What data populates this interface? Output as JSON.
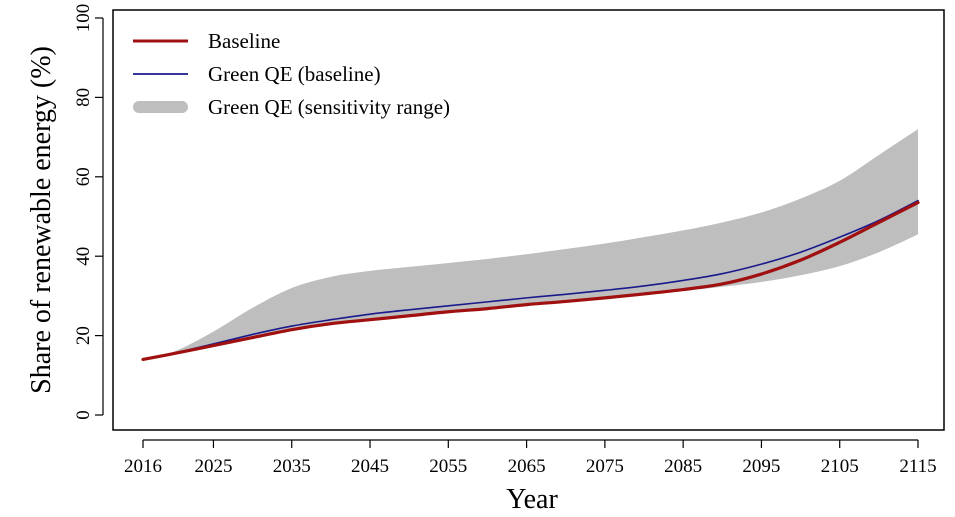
{
  "chart_data": {
    "type": "line",
    "title": "",
    "xlabel": "Year",
    "ylabel": "Share of renewable energy (%)",
    "xlim": [
      2016,
      2115
    ],
    "ylim": [
      0,
      100
    ],
    "x_ticks": [
      2016,
      2025,
      2035,
      2045,
      2055,
      2065,
      2075,
      2085,
      2095,
      2105,
      2115
    ],
    "y_ticks": [
      0,
      20,
      40,
      60,
      80,
      100
    ],
    "legend_position": "top-left",
    "grid": false,
    "legend": [
      {
        "label": "Baseline",
        "color": "#A01010",
        "kind": "line"
      },
      {
        "label": "Green QE (baseline)",
        "color": "#1A1A8C",
        "kind": "line"
      },
      {
        "label": "Green QE (sensitivity range)",
        "color": "#BEBEBE",
        "kind": "band"
      }
    ],
    "x": [
      2016,
      2020,
      2025,
      2030,
      2035,
      2040,
      2045,
      2050,
      2055,
      2060,
      2065,
      2070,
      2075,
      2080,
      2085,
      2090,
      2095,
      2100,
      2105,
      2110,
      2115
    ],
    "series": [
      {
        "name": "Baseline",
        "color": "#A01010",
        "values": [
          14.0,
          15.5,
          17.5,
          19.5,
          21.5,
          23.0,
          24.0,
          25.0,
          26.0,
          26.8,
          27.8,
          28.6,
          29.5,
          30.5,
          31.6,
          33.0,
          35.5,
          39.0,
          43.5,
          48.5,
          53.5
        ]
      },
      {
        "name": "Green QE (baseline)",
        "color": "#1A1A8C",
        "values": [
          14.0,
          15.6,
          17.9,
          20.3,
          22.4,
          24.0,
          25.4,
          26.5,
          27.5,
          28.5,
          29.5,
          30.4,
          31.4,
          32.5,
          33.9,
          35.6,
          38.0,
          41.0,
          44.8,
          49.0,
          54.0
        ]
      },
      {
        "name": "Green QE (sensitivity range)",
        "kind": "band",
        "color": "#BEBEBE",
        "lower": [
          14.0,
          15.5,
          17.5,
          19.4,
          21.3,
          22.8,
          23.8,
          24.8,
          25.8,
          26.7,
          27.6,
          28.5,
          29.4,
          30.3,
          31.2,
          32.3,
          33.5,
          35.2,
          37.5,
          41.0,
          45.5
        ],
        "upper": [
          14.0,
          16.0,
          21.0,
          27.0,
          32.0,
          34.8,
          36.3,
          37.3,
          38.3,
          39.3,
          40.5,
          41.8,
          43.2,
          44.8,
          46.5,
          48.5,
          51.0,
          54.5,
          59.0,
          65.5,
          72.0
        ]
      }
    ]
  }
}
